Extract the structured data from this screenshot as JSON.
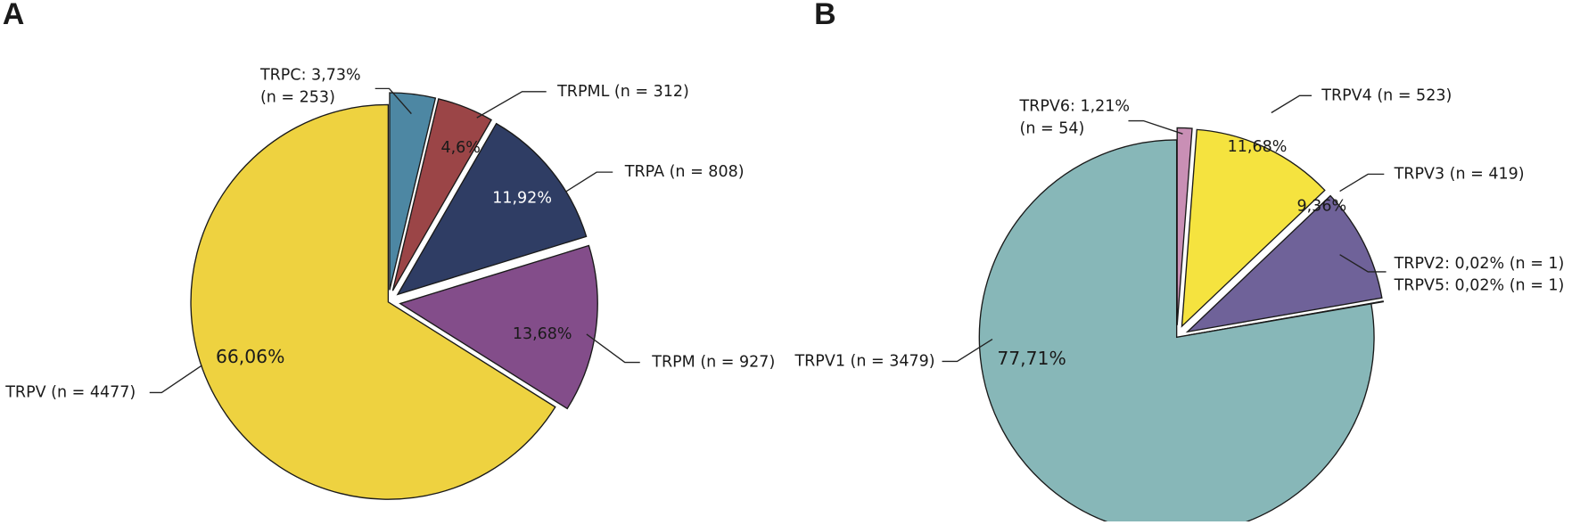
{
  "chart_data": [
    {
      "type": "pie",
      "panel": "A",
      "labels": [
        [
          "TRPC: 3,73%",
          "(n = 253)"
        ],
        [
          "TRPML (n = 312)"
        ],
        [
          "TRPA (n = 808)"
        ],
        [
          "TRPM (n = 927)"
        ],
        [
          "TRPV (n = 4477)"
        ]
      ],
      "values": [
        3.73,
        4.6,
        11.92,
        13.68,
        66.06
      ],
      "value_labels": [
        null,
        "4,6%",
        "11,92%",
        "13,68%",
        "66,06%"
      ],
      "colors": [
        "#4d87a3",
        "#9b4547",
        "#2f3d64",
        "#834d8a",
        "#eed240"
      ],
      "explode": [
        true,
        true,
        true,
        true,
        false
      ]
    },
    {
      "type": "pie",
      "panel": "B",
      "labels": [
        [
          "TRPV6: 1,21%",
          "(n = 54)"
        ],
        [
          "TRPV4 (n = 523)"
        ],
        [
          "TRPV3 (n = 419)"
        ],
        [
          "TRPV2: 0,02% (n = 1)"
        ],
        [
          "TRPV5: 0,02% (n = 1)"
        ],
        [
          "TRPV1 (n = 3479)"
        ]
      ],
      "values": [
        1.21,
        11.68,
        9.36,
        0.02,
        0.02,
        77.71
      ],
      "value_labels": [
        null,
        "11,68%",
        "9,36%",
        null,
        null,
        "77,71%"
      ],
      "colors": [
        "#c98fb5",
        "#f5e33f",
        "#6f6299",
        "#222222",
        "#222222",
        "#87b7b8"
      ],
      "explode": [
        true,
        true,
        true,
        true,
        true,
        false
      ]
    }
  ]
}
